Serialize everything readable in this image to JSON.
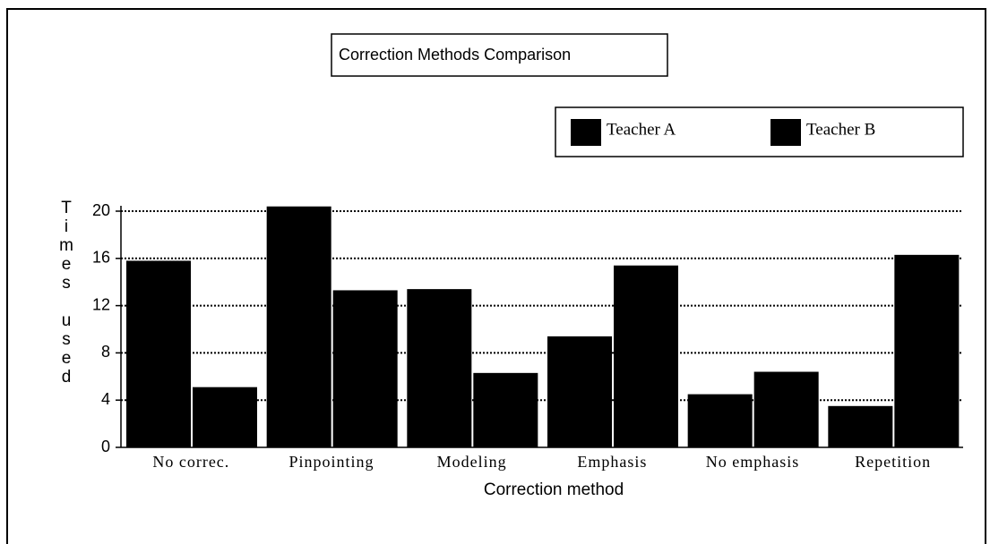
{
  "chart_data": {
    "type": "bar",
    "title": "Correction Methods Comparison",
    "x_label": "Correction method",
    "y_label": "Times used",
    "categories": [
      "No correc.",
      "Pinpointing",
      "Modeling",
      "Emphasis",
      "No emphasis",
      "Repetition"
    ],
    "series": [
      {
        "name": "Teacher A",
        "color": "#000000",
        "values": [
          15.8,
          20.4,
          13.4,
          9.4,
          4.5,
          3.5
        ]
      },
      {
        "name": "Teacher B",
        "color": "#000000",
        "values": [
          5.1,
          13.3,
          6.3,
          15.4,
          6.4,
          16.3
        ]
      }
    ],
    "ylim": [
      0,
      20
    ],
    "yticks": [
      0,
      4,
      8,
      12,
      16,
      20
    ],
    "grid": true
  }
}
